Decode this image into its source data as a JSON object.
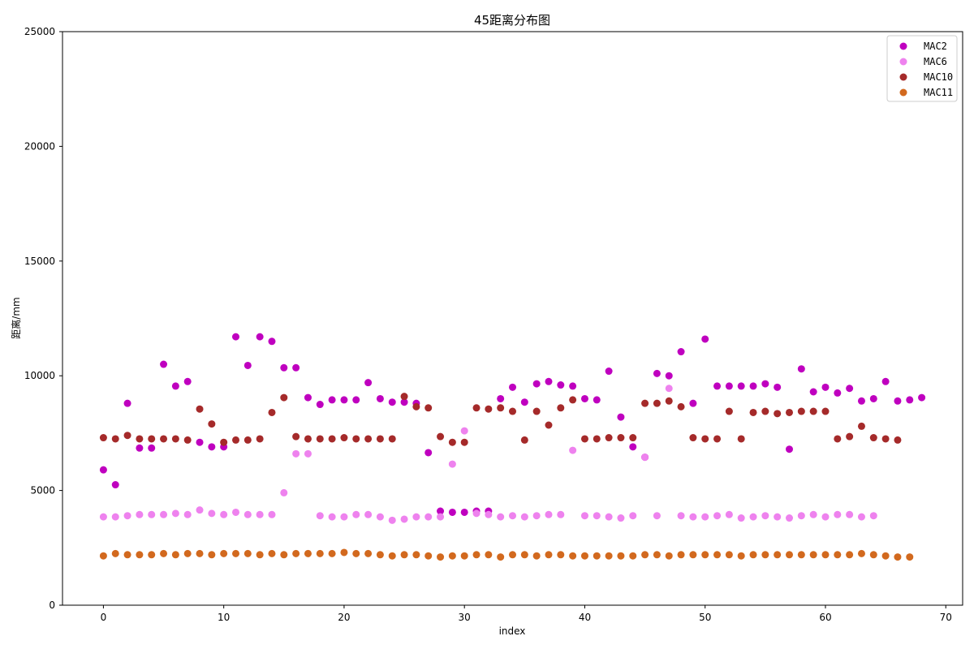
{
  "chart_data": {
    "type": "scatter",
    "title": "45距离分布图",
    "xlabel": "index",
    "ylabel": "距离/mm",
    "xlim": [
      -3.4,
      71.4
    ],
    "ylim": [
      0,
      25000
    ],
    "xticks": [
      0,
      10,
      20,
      30,
      40,
      50,
      60,
      70
    ],
    "yticks": [
      0,
      5000,
      10000,
      15000,
      20000,
      25000
    ],
    "grid": false,
    "legend_position": "top-right",
    "series": [
      {
        "name": "MAC2",
        "color": "#bf00bf",
        "x": [
          0,
          1,
          2,
          3,
          4,
          5,
          6,
          7,
          8,
          9,
          10,
          11,
          12,
          13,
          14,
          15,
          16,
          17,
          18,
          19,
          20,
          21,
          22,
          23,
          24,
          25,
          26,
          27,
          28,
          29,
          30,
          31,
          32,
          33,
          34,
          35,
          36,
          37,
          38,
          39,
          40,
          41,
          42,
          43,
          44,
          45,
          46,
          47,
          48,
          49,
          50,
          51,
          52,
          53,
          54,
          55,
          56,
          57,
          58,
          59,
          60,
          61,
          62,
          63,
          64,
          65,
          66,
          67,
          68
        ],
        "y": [
          5900,
          5250,
          8800,
          6850,
          6850,
          10500,
          9550,
          9750,
          7100,
          6900,
          6900,
          11700,
          10450,
          11700,
          11500,
          10350,
          10350,
          9050,
          8750,
          8950,
          8950,
          8950,
          9700,
          9000,
          8850,
          8850,
          8800,
          6650,
          4100,
          4050,
          4050,
          4100,
          4100,
          9000,
          9500,
          8850,
          9650,
          9750,
          9600,
          9550,
          9000,
          8950,
          10200,
          8200,
          6900,
          6450,
          10100,
          10000,
          11050,
          8800,
          11600,
          9550,
          9550,
          9550,
          9550,
          9650,
          9500,
          6800,
          10300,
          9300,
          9500,
          9250,
          9450,
          8900,
          9000,
          9750,
          8900,
          8950,
          9050
        ]
      },
      {
        "name": "MAC6",
        "color": "#ee82ee",
        "x": [
          0,
          1,
          2,
          3,
          4,
          5,
          6,
          7,
          8,
          9,
          10,
          11,
          12,
          13,
          14,
          15,
          16,
          17,
          18,
          19,
          20,
          21,
          22,
          23,
          24,
          25,
          26,
          27,
          28,
          29,
          30,
          31,
          32,
          33,
          34,
          35,
          36,
          37,
          38,
          39,
          40,
          41,
          42,
          43,
          44,
          45,
          46,
          47,
          48,
          49,
          50,
          51,
          52,
          53,
          54,
          55,
          56,
          57,
          58,
          59,
          60,
          61,
          62,
          63,
          64
        ],
        "y": [
          3850,
          3850,
          3900,
          3950,
          3950,
          3950,
          4000,
          3950,
          4150,
          4000,
          3950,
          4050,
          3950,
          3950,
          3950,
          4900,
          6600,
          6600,
          3900,
          3850,
          3850,
          3950,
          3950,
          3850,
          3700,
          3750,
          3850,
          3850,
          3850,
          6150,
          7600,
          4000,
          3950,
          3850,
          3900,
          3850,
          3900,
          3950,
          3950,
          6750,
          3900,
          3900,
          3850,
          3800,
          3900,
          6450,
          3900,
          9450,
          3900,
          3850,
          3850,
          3900,
          3950,
          3800,
          3850,
          3900,
          3850,
          3800,
          3900,
          3950,
          3850,
          3950,
          3950,
          3850,
          3900
        ]
      },
      {
        "name": "MAC10",
        "color": "#a52a2a",
        "x": [
          0,
          1,
          2,
          3,
          4,
          5,
          6,
          7,
          8,
          9,
          10,
          11,
          12,
          13,
          14,
          15,
          16,
          17,
          18,
          19,
          20,
          21,
          22,
          23,
          24,
          25,
          26,
          27,
          28,
          29,
          30,
          31,
          32,
          33,
          34,
          35,
          36,
          37,
          38,
          39,
          40,
          41,
          42,
          43,
          44,
          45,
          46,
          47,
          48,
          49,
          50,
          51,
          52,
          53,
          54,
          55,
          56,
          57,
          58,
          59,
          60,
          61,
          62,
          63,
          64,
          65,
          66
        ],
        "y": [
          7300,
          7250,
          7400,
          7250,
          7250,
          7250,
          7250,
          7200,
          8550,
          7900,
          7100,
          7200,
          7200,
          7250,
          8400,
          9050,
          7350,
          7250,
          7250,
          7250,
          7300,
          7250,
          7250,
          7250,
          7250,
          9100,
          8650,
          8600,
          7350,
          7100,
          7100,
          8600,
          8550,
          8600,
          8450,
          7200,
          8450,
          7850,
          8600,
          8950,
          7250,
          7250,
          7300,
          7300,
          7300,
          8800,
          8800,
          8900,
          8650,
          7300,
          7250,
          7250,
          8450,
          7250,
          8400,
          8450,
          8350,
          8400,
          8450,
          8450,
          8450,
          7250,
          7350,
          7800,
          7300,
          7250,
          7200
        ]
      },
      {
        "name": "MAC11",
        "color": "#d2691e",
        "x": [
          0,
          1,
          2,
          3,
          4,
          5,
          6,
          7,
          8,
          9,
          10,
          11,
          12,
          13,
          14,
          15,
          16,
          17,
          18,
          19,
          20,
          21,
          22,
          23,
          24,
          25,
          26,
          27,
          28,
          29,
          30,
          31,
          32,
          33,
          34,
          35,
          36,
          37,
          38,
          39,
          40,
          41,
          42,
          43,
          44,
          45,
          46,
          47,
          48,
          49,
          50,
          51,
          52,
          53,
          54,
          55,
          56,
          57,
          58,
          59,
          60,
          61,
          62,
          63,
          64,
          65,
          66,
          67
        ],
        "y": [
          2150,
          2250,
          2200,
          2200,
          2200,
          2250,
          2200,
          2250,
          2250,
          2200,
          2250,
          2250,
          2250,
          2200,
          2250,
          2200,
          2250,
          2250,
          2250,
          2250,
          2300,
          2250,
          2250,
          2200,
          2150,
          2200,
          2200,
          2150,
          2100,
          2150,
          2150,
          2200,
          2200,
          2100,
          2200,
          2200,
          2150,
          2200,
          2200,
          2150,
          2150,
          2150,
          2150,
          2150,
          2150,
          2200,
          2200,
          2150,
          2200,
          2200,
          2200,
          2200,
          2200,
          2150,
          2200,
          2200,
          2200,
          2200,
          2200,
          2200,
          2200,
          2200,
          2200,
          2250,
          2200,
          2150,
          2100,
          2100
        ]
      }
    ]
  }
}
